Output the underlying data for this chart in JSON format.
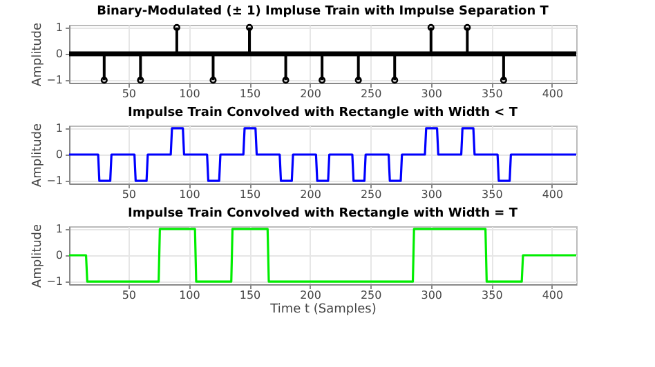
{
  "chart_data": [
    {
      "type": "lollipop",
      "title": "Binary-Modulated (± 1) Impluse Train with Impulse Separation T",
      "ylabel": "Amplitude",
      "xlim": [
        1,
        420
      ],
      "xticks": [
        50,
        100,
        150,
        200,
        250,
        300,
        350,
        400
      ],
      "ylim": [
        -1.1,
        1.1
      ],
      "yticks": [
        -1,
        0,
        1
      ],
      "grid": true,
      "marker": "circle",
      "series": [
        {
          "color": "#000000",
          "x": [
            30,
            60,
            90,
            120,
            150,
            180,
            210,
            240,
            270,
            300,
            330,
            360
          ],
          "values": [
            -1,
            -1,
            1,
            -1,
            1,
            -1,
            -1,
            -1,
            -1,
            1,
            1,
            -1
          ]
        }
      ],
      "ref_lines": [
        {
          "axis": "y",
          "value": 0,
          "color": "#000000"
        }
      ]
    },
    {
      "type": "line",
      "title": "Impulse Train Convolved with Rectangle with Width < T",
      "ylabel": "Amplitude",
      "xlim": [
        1,
        420
      ],
      "xticks": [
        50,
        100,
        150,
        200,
        250,
        300,
        350,
        400
      ],
      "ylim": [
        -1.1,
        1.1
      ],
      "yticks": [
        -1,
        0,
        1
      ],
      "grid": true,
      "series": [
        {
          "color": "#0000ff",
          "x": [
            1,
            25,
            26,
            35,
            36,
            55,
            56,
            65,
            66,
            85,
            86,
            95,
            96,
            115,
            116,
            125,
            126,
            145,
            146,
            155,
            156,
            175,
            176,
            185,
            186,
            205,
            206,
            215,
            216,
            235,
            236,
            245,
            246,
            265,
            266,
            275,
            276,
            295,
            296,
            305,
            306,
            325,
            326,
            335,
            336,
            355,
            356,
            365,
            366,
            420
          ],
          "values": [
            0,
            0,
            -1,
            -1,
            0,
            0,
            -1,
            -1,
            0,
            0,
            1,
            1,
            0,
            0,
            -1,
            -1,
            0,
            0,
            1,
            1,
            0,
            0,
            -1,
            -1,
            0,
            0,
            -1,
            -1,
            0,
            0,
            -1,
            -1,
            0,
            0,
            -1,
            -1,
            0,
            0,
            1,
            1,
            0,
            0,
            1,
            1,
            0,
            0,
            -1,
            -1,
            0,
            0
          ]
        }
      ]
    },
    {
      "type": "line",
      "title": "Impulse Train Convolved with Rectangle with Width = T",
      "xlabel": "Time t (Samples)",
      "ylabel": "Amplitude",
      "xlim": [
        1,
        420
      ],
      "xticks": [
        50,
        100,
        150,
        200,
        250,
        300,
        350,
        400
      ],
      "ylim": [
        -1.1,
        1.1
      ],
      "yticks": [
        -1,
        0,
        1
      ],
      "grid": true,
      "series": [
        {
          "color": "#00ee00",
          "x": [
            1,
            15,
            16,
            75,
            76,
            105,
            106,
            135,
            136,
            165,
            166,
            285,
            286,
            345,
            346,
            375,
            376,
            420
          ],
          "values": [
            0,
            0,
            -1,
            -1,
            1,
            1,
            -1,
            -1,
            1,
            1,
            -1,
            -1,
            1,
            1,
            -1,
            -1,
            0,
            0
          ]
        }
      ]
    }
  ]
}
